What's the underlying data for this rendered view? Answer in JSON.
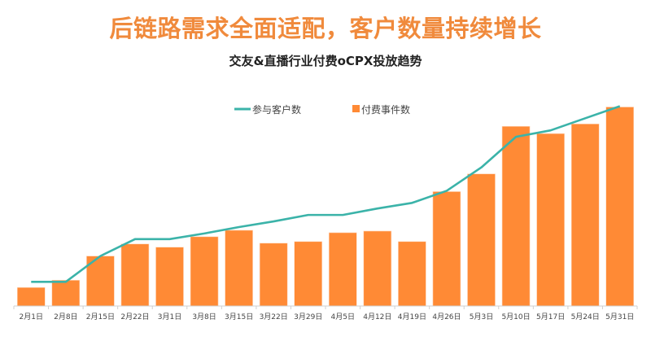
{
  "title": "后链路需求全面适配，客户数量持续增长",
  "chart_data": {
    "type": "bar+line",
    "title": "交友&直播行业付费oCPX投放趋势",
    "xlabel": "",
    "ylabel": "",
    "categories": [
      "2月1日",
      "2月8日",
      "2月15日",
      "2月22日",
      "3月1日",
      "3月8日",
      "3月15日",
      "3月22日",
      "3月29日",
      "4月5日",
      "4月12日",
      "4月19日",
      "4月26日",
      "5月3日",
      "5月10日",
      "5月17日",
      "5月24日",
      "5月31日"
    ],
    "series": [
      {
        "name": "参与客户数",
        "type": "line",
        "color": "#3bb3a9",
        "values": [
          30,
          30,
          62,
          83,
          83,
          90,
          98,
          105,
          113,
          113,
          121,
          128,
          143,
          172,
          210,
          218,
          233,
          248
        ]
      },
      {
        "name": "付费事件数",
        "type": "bar",
        "color": "#ff8a35",
        "values": [
          23,
          32,
          62,
          77,
          73,
          86,
          94,
          78,
          80,
          91,
          93,
          80,
          142,
          164,
          223,
          214,
          226,
          247
        ]
      }
    ],
    "ylim": [
      0,
      250
    ],
    "y_axis_visible": false,
    "grid": false,
    "legend": "top-center"
  }
}
